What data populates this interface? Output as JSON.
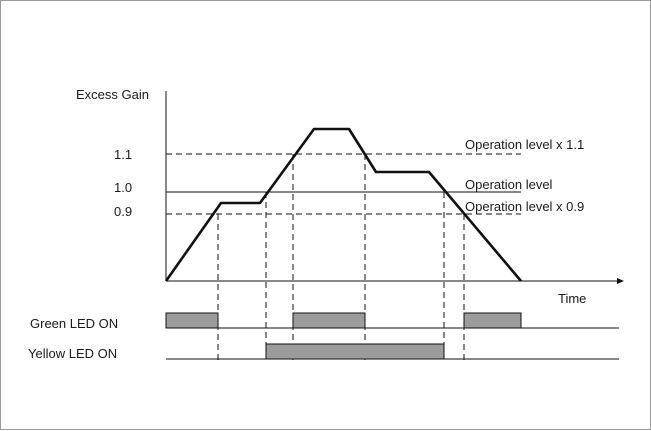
{
  "diagram": {
    "y_axis_label": "Excess Gain",
    "x_axis_label": "Time",
    "ticks": [
      {
        "label": "1.1",
        "line_label": "Operation level x 1.1"
      },
      {
        "label": "1.0",
        "line_label": "Operation level"
      },
      {
        "label": "0.9",
        "line_label": "Operation level x 0.9"
      }
    ],
    "signals": [
      {
        "label": "Green LED ON"
      },
      {
        "label": "Yellow LED ON"
      }
    ]
  }
}
